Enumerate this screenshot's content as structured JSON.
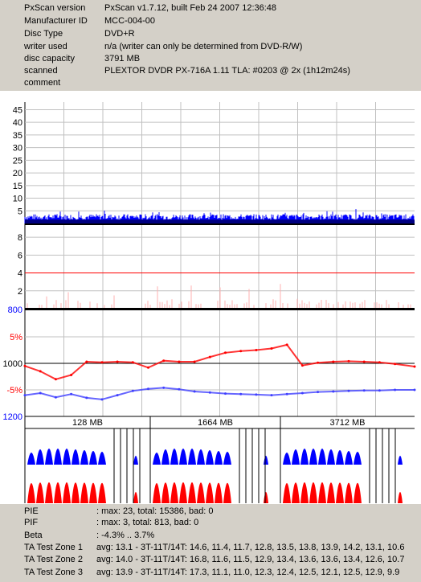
{
  "header": [
    {
      "key": "PxScan version",
      "value": "PxScan v1.7.12, built Feb 24 2007 12:36:48"
    },
    {
      "key": "Manufacturer ID",
      "value": "MCC-004-00"
    },
    {
      "key": "Disc Type",
      "value": "DVD+R"
    },
    {
      "key": "writer used",
      "value": "n/a (writer can only be determined from DVD-R/W)"
    },
    {
      "key": "disc capacity",
      "value": "3791 MB"
    },
    {
      "key": "scanned",
      "value": "PLEXTOR DVDR PX-716A 1.11 TLA: #0203 @ 2x (1h12m24s)"
    },
    {
      "key": "comment",
      "value": ""
    }
  ],
  "chart_data": [
    {
      "type": "bar",
      "title": "PIE",
      "yticks": [
        5,
        10,
        15,
        20,
        25,
        30,
        35,
        40,
        45
      ],
      "ylim": [
        0,
        48
      ],
      "max": 23,
      "color": "#0000ff"
    },
    {
      "type": "bar",
      "title": "PIF",
      "yticks": [
        2,
        4,
        6,
        8
      ],
      "ylim": [
        0,
        9
      ],
      "threshold": 4,
      "max": 3,
      "color": "#ff0000"
    },
    {
      "type": "line",
      "title": "Beta / Jitter",
      "yticks_left": [
        "800",
        "1000",
        "1200"
      ],
      "yticks_pct": [
        "5%",
        "-5%"
      ],
      "series": [
        {
          "name": "beta",
          "color": "#ff0000",
          "x": [
            0,
            150,
            300,
            450,
            600,
            750,
            900,
            1050,
            1200,
            1350,
            1500,
            1650,
            1800,
            1950,
            2100,
            2250,
            2400,
            2550,
            2700,
            2850,
            3000,
            3150,
            3300,
            3450,
            3600,
            3791
          ],
          "y": [
            -0.5,
            -1.5,
            -3.0,
            -2.2,
            0.3,
            0.2,
            0.3,
            0.2,
            -0.8,
            0.5,
            0.3,
            0.3,
            1.2,
            2.0,
            2.3,
            2.5,
            2.8,
            3.5,
            -0.4,
            0.1,
            0.3,
            0.4,
            0.3,
            0.2,
            -0.1,
            -0.6
          ]
        },
        {
          "name": "jitter",
          "color": "#4040ff",
          "x": [
            0,
            150,
            300,
            450,
            600,
            750,
            900,
            1050,
            1200,
            1350,
            1500,
            1650,
            1800,
            1950,
            2100,
            2250,
            2400,
            2550,
            2700,
            2850,
            3000,
            3150,
            3300,
            3450,
            3600,
            3791
          ],
          "y": [
            -6.0,
            -5.6,
            -6.4,
            -5.8,
            -6.5,
            -6.8,
            -6.0,
            -5.2,
            -4.8,
            -4.6,
            -4.9,
            -5.3,
            -5.5,
            -5.7,
            -5.8,
            -5.9,
            -6.0,
            -5.8,
            -5.6,
            -5.4,
            -5.3,
            -5.2,
            -5.1,
            -5.1,
            -5.0,
            -5.0
          ]
        }
      ]
    },
    {
      "type": "bar",
      "title": "TA Test Zones",
      "zones": [
        "128 MB",
        "1664 MB",
        "3712 MB"
      ]
    }
  ],
  "footer": [
    {
      "key": "PIE",
      "value": ": max: 23, total: 15386, bad: 0"
    },
    {
      "key": "PIF",
      "value": ": max: 3, total: 813, bad: 0"
    },
    {
      "key": "Beta",
      "value": ": -4.3% .. 3.7%"
    },
    {
      "key": "TA Test Zone 1",
      "value": "avg: 13.1 - 3T-11T/14T: 14.6, 11.4, 11.7, 12.8, 13.5, 13.8, 13.9, 14.2, 13.1, 10.6"
    },
    {
      "key": "TA Test Zone 2",
      "value": "avg: 14.0 - 3T-11T/14T: 16.8, 11.6, 11.5, 12.9, 13.4, 13.6, 13.6, 13.4, 12.6, 10.7"
    },
    {
      "key": "TA Test Zone 3",
      "value": "avg: 13.9 - 3T-11T/14T: 17.3, 11.1, 11.0, 12.3, 12.4, 12.5, 12.1, 12.5, 12.9, 9.9"
    }
  ]
}
